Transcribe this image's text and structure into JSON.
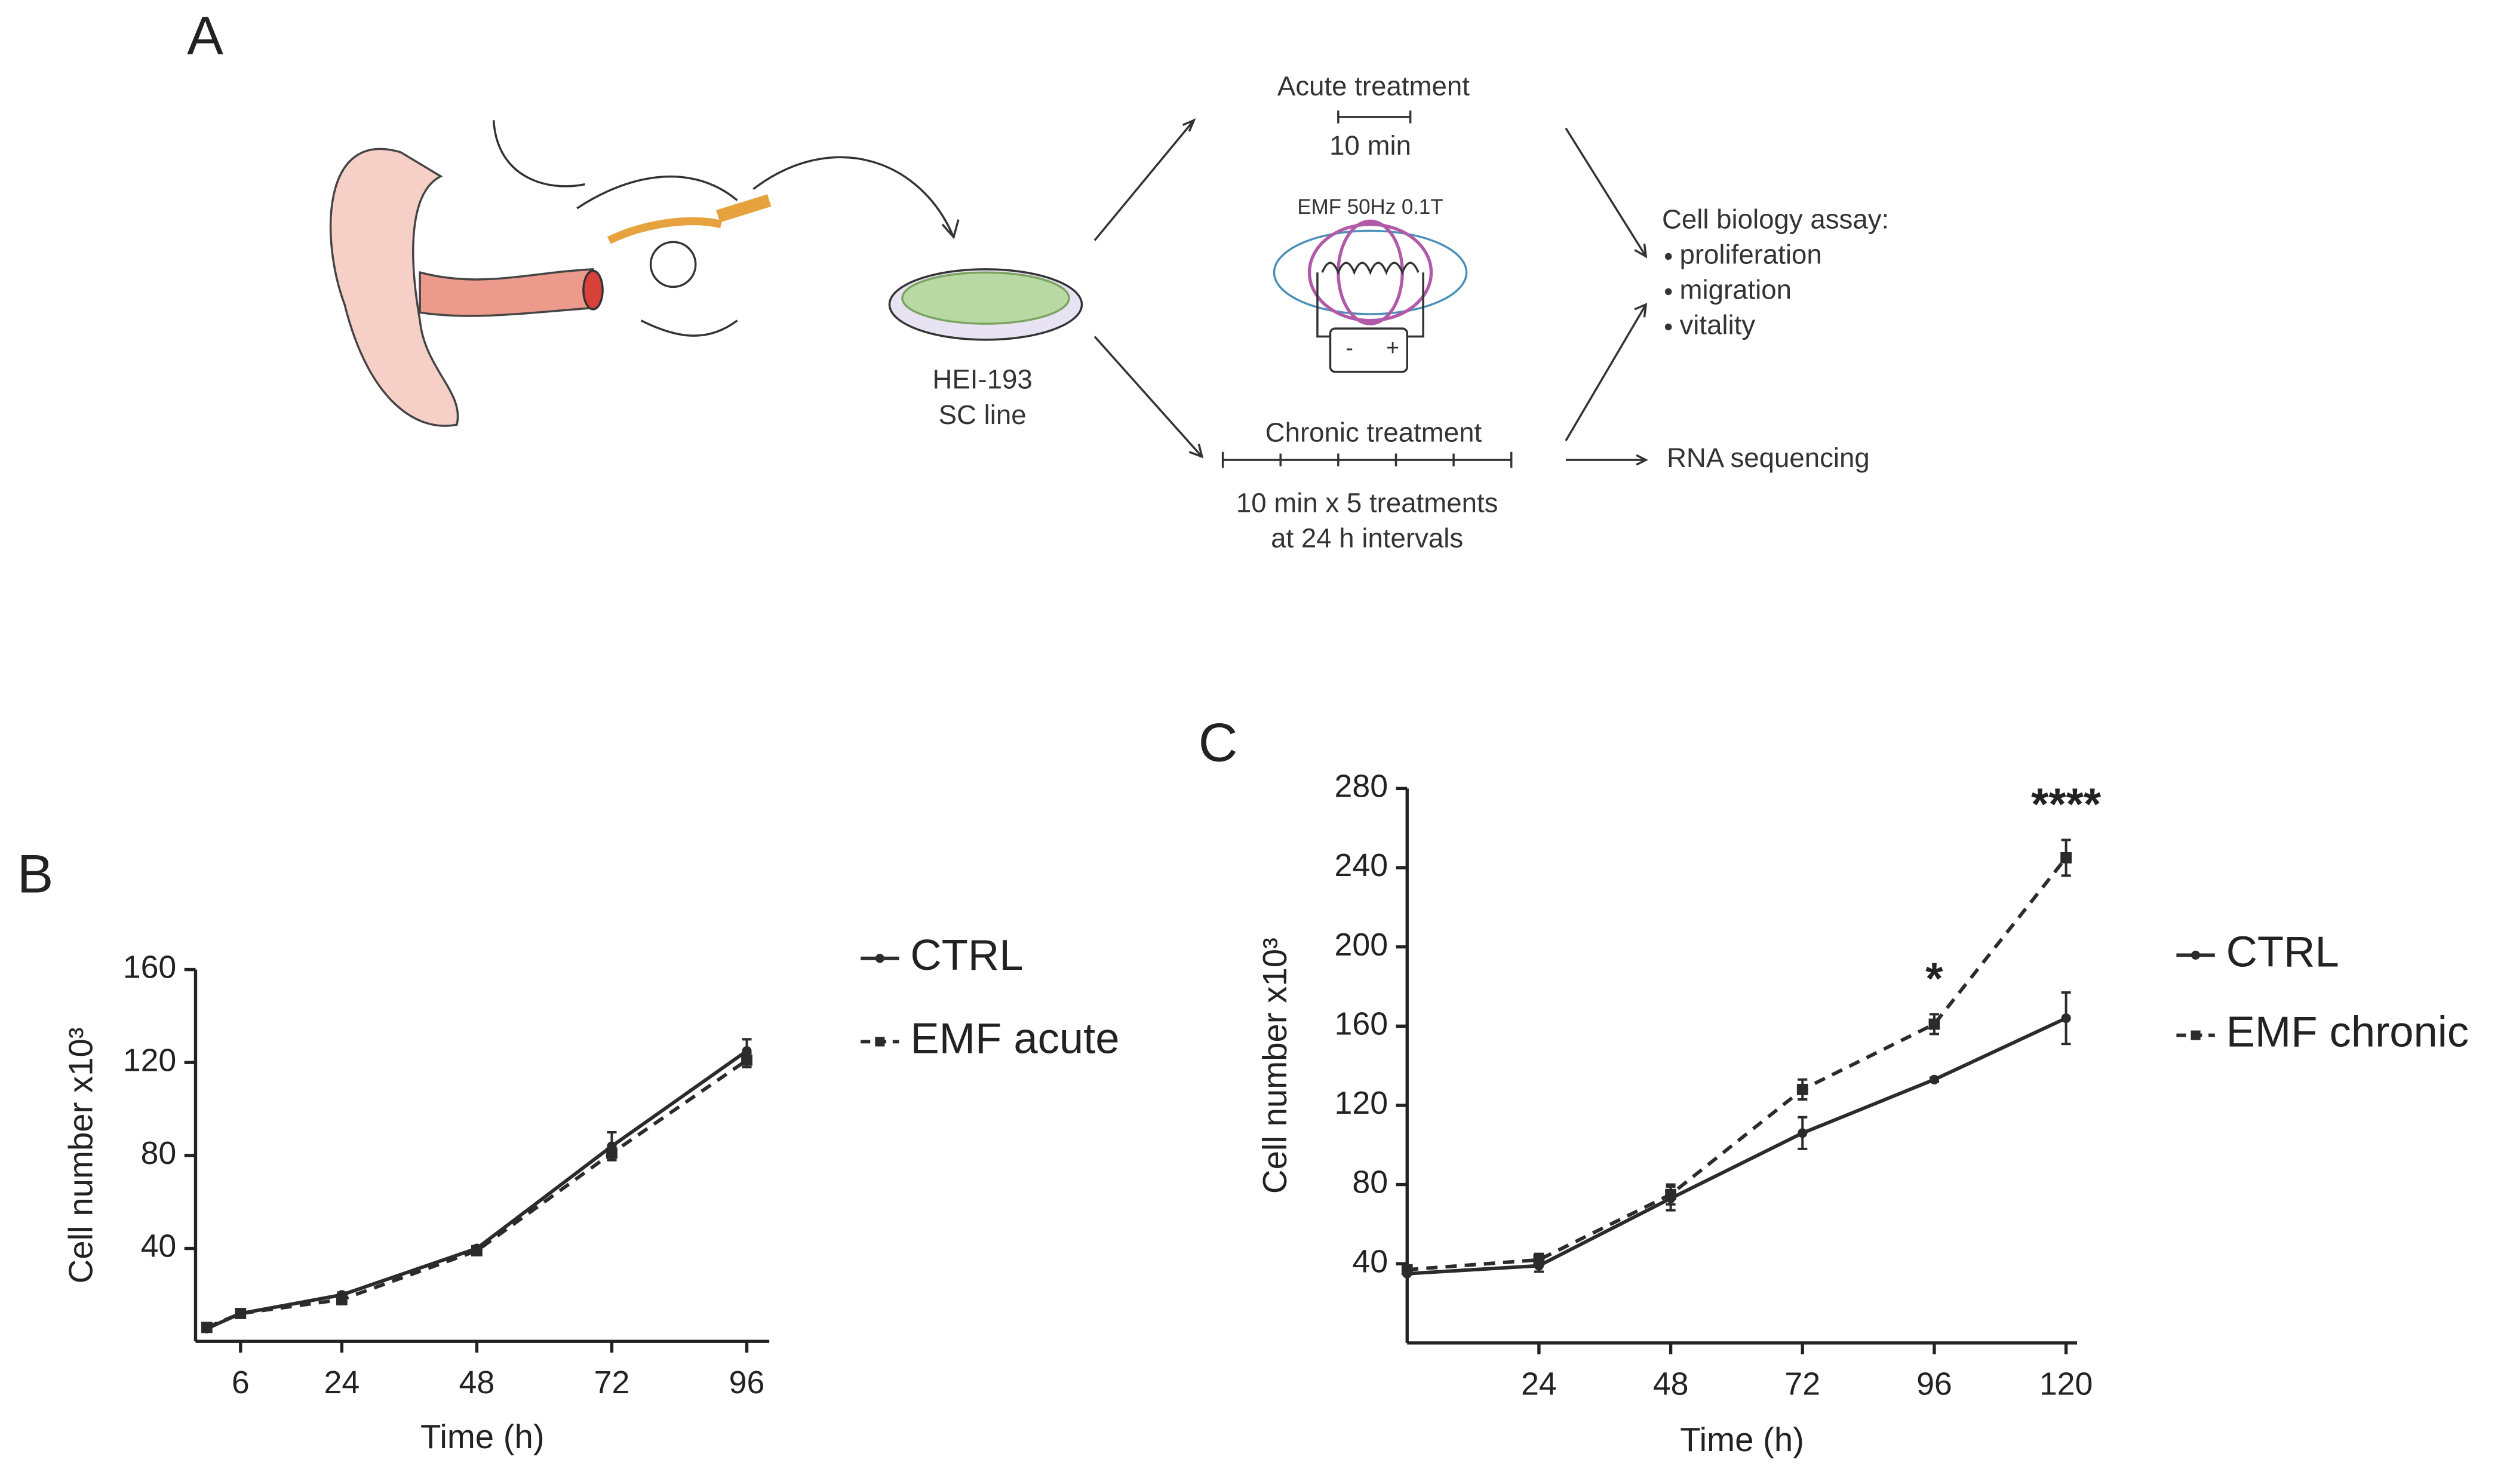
{
  "panels": {
    "a": "A",
    "b": "B",
    "c": "C"
  },
  "diagram": {
    "acute_title": "Acute treatment",
    "acute_duration": "10 min",
    "emf_label": "EMF 50Hz 0.1T",
    "battery_minus": "-",
    "battery_plus": "+",
    "cell_line": "HEI-193",
    "cell_line_sub": "SC line",
    "chronic_title": "Chronic treatment",
    "chronic_line1": "10 min x 5 treatments",
    "chronic_line2": "at 24 h intervals",
    "assay_title": "Cell biology assay:",
    "assays": [
      "proliferation",
      "migration",
      "vitality"
    ],
    "sequencing": "RNA sequencing"
  },
  "chart_data": [
    {
      "type": "line",
      "x_label": "Time (h)",
      "y_label": "Cell number x10³",
      "x": [
        0,
        6,
        24,
        48,
        72,
        96
      ],
      "xlim": [
        -2,
        100
      ],
      "xticks": [
        6,
        24,
        48,
        72,
        96
      ],
      "ylim": [
        0,
        160
      ],
      "yticks": [
        40,
        80,
        120,
        160
      ],
      "legend": "right",
      "series": [
        {
          "name": "CTRL",
          "color": "#2b2b2b",
          "line_style": "solid",
          "marker": "circle",
          "values": [
            5.5,
            12,
            20,
            40,
            84,
            125
          ],
          "errors": [
            1,
            1,
            1,
            1,
            6,
            5
          ]
        },
        {
          "name": "EMF acute",
          "color": "#2b2b2b",
          "line_style": "dashed",
          "marker": "square",
          "values": [
            6,
            12,
            18,
            39,
            81,
            121
          ],
          "errors": [
            1,
            1,
            2,
            1,
            3,
            3
          ]
        }
      ]
    },
    {
      "type": "line",
      "x_label": "Time (h)",
      "y_label": "Cell number x10³",
      "x": [
        0,
        24,
        48,
        72,
        96,
        120
      ],
      "xlim": [
        0,
        122
      ],
      "xticks": [
        24,
        48,
        72,
        96,
        120
      ],
      "ylim": [
        0,
        280
      ],
      "yticks": [
        40,
        80,
        120,
        160,
        200,
        240,
        280
      ],
      "legend": "right",
      "series": [
        {
          "name": "CTRL",
          "color": "#2b2b2b",
          "line_style": "solid",
          "marker": "circle",
          "values": [
            35,
            39,
            73,
            106,
            133,
            164
          ],
          "errors": [
            0,
            3,
            6,
            8,
            1,
            13
          ]
        },
        {
          "name": "EMF chronic",
          "color": "#2b2b2b",
          "line_style": "dashed",
          "marker": "square",
          "values": [
            37,
            42,
            75,
            128,
            161,
            245
          ],
          "errors": [
            0,
            3,
            5,
            5,
            5,
            9
          ]
        }
      ],
      "annotations": [
        {
          "text": "*",
          "x": 96
        },
        {
          "text": "****",
          "x": 120
        }
      ]
    }
  ]
}
